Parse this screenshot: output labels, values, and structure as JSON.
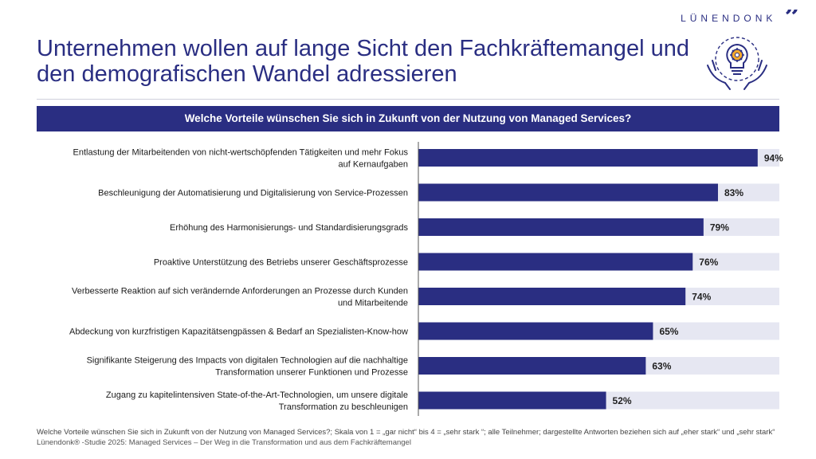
{
  "brand": {
    "name": "LÜNENDONK",
    "mark": "”",
    "color": "#2a2e82"
  },
  "title": {
    "line1": "Unternehmen wollen auf lange Sicht den Fachkräftemangel und",
    "line2": "den demografischen Wandel adressieren"
  },
  "hero_icon": "lightbulb-gear-hands-icon",
  "question": "Welche Vorteile wünschen Sie sich in Zukunft von der Nutzung von Managed Services?",
  "chart_data": {
    "type": "bar",
    "orientation": "horizontal",
    "categories": [
      [
        "Entlastung der Mitarbeitenden von nicht-wertschöpfenden Tätigkeiten und mehr Fokus",
        "auf Kernaufgaben"
      ],
      [
        "Beschleunigung der Automatisierung und Digitalisierung von Service-Prozessen"
      ],
      [
        "Erhöhung des Harmonisierungs- und Standardisierungsgrads"
      ],
      [
        "Proaktive Unterstützung des Betriebs unserer Geschäftsprozesse"
      ],
      [
        "Verbesserte Reaktion auf sich verändernde Anforderungen an Prozesse durch Kunden",
        "und Mitarbeitende"
      ],
      [
        "Abdeckung von kurzfristigen Kapazitätsengpässen & Bedarf an Spezialisten-Know-how"
      ],
      [
        "Signifikante Steigerung des Impacts von digitalen Technologien auf die nachhaltige",
        "Transformation unserer Funktionen und Prozesse"
      ],
      [
        "Zugang zu kapitelintensiven State-of-the-Art-Technologien, um unsere digitale",
        "Transformation zu beschleunigen"
      ]
    ],
    "values": [
      94,
      83,
      79,
      76,
      74,
      65,
      63,
      52
    ],
    "value_labels": [
      "94%",
      "83%",
      "79%",
      "76%",
      "74%",
      "65%",
      "63%",
      "52%"
    ],
    "xlim": [
      0,
      100
    ],
    "bar_color": "#2a2e82",
    "track_color": "#e6e7f2",
    "grid": false,
    "legend": "none"
  },
  "footnote": {
    "line1": "Welche Vorteile wünschen Sie sich in Zukunft von der Nutzung von Managed Services?; Skala von 1 = „gar nicht“ bis 4 = „sehr stark “; alle Teilnehmer; dargestellte Antworten beziehen sich auf „eher stark“ und „sehr stark“",
    "line2": "Lünendonk® -Studie 2025: Managed Services – Der Weg in die Transformation und aus dem Fachkräftemangel"
  }
}
